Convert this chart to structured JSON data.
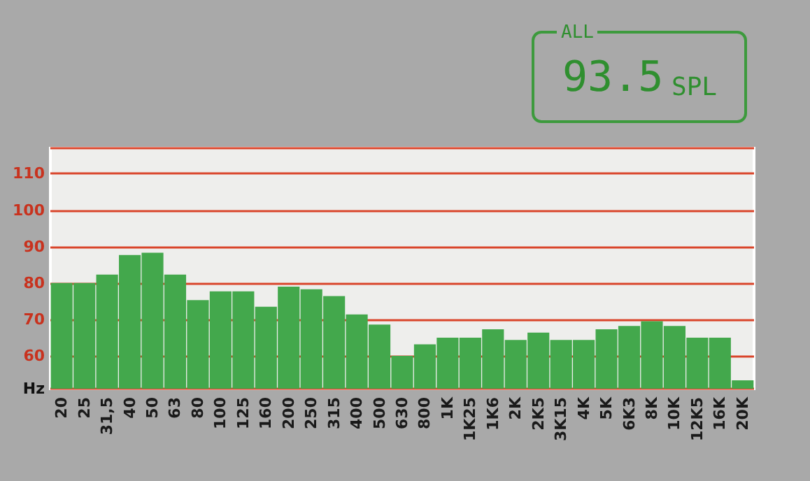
{
  "chart_data": {
    "type": "bar",
    "xlabel": "Hz",
    "categories": [
      "20",
      "25",
      "31,5",
      "40",
      "50",
      "63",
      "80",
      "100",
      "125",
      "160",
      "200",
      "250",
      "315",
      "400",
      "500",
      "630",
      "800",
      "1K",
      "1K25",
      "1K6",
      "2K",
      "2K5",
      "3K15",
      "4K",
      "5K",
      "6K3",
      "8K",
      "10K",
      "12K5",
      "16K",
      "20K"
    ],
    "values": [
      80,
      80,
      82.3,
      87.7,
      88.3,
      82.3,
      75.3,
      77.7,
      77.7,
      73.5,
      79,
      78.3,
      76.4,
      71.4,
      68.6,
      60,
      63.2,
      65,
      65,
      67.3,
      64.4,
      66.4,
      64.4,
      64.4,
      67.3,
      68.2,
      69.5,
      68.2,
      65,
      65,
      53.3
    ],
    "color": "#43a84c",
    "ylim": [
      51,
      117
    ],
    "yticks": [
      60,
      70,
      80,
      90,
      100,
      110
    ],
    "grid": "y",
    "tick_labels": true,
    "annotations": [
      "ALL",
      "93.5",
      "SPL"
    ]
  }
}
